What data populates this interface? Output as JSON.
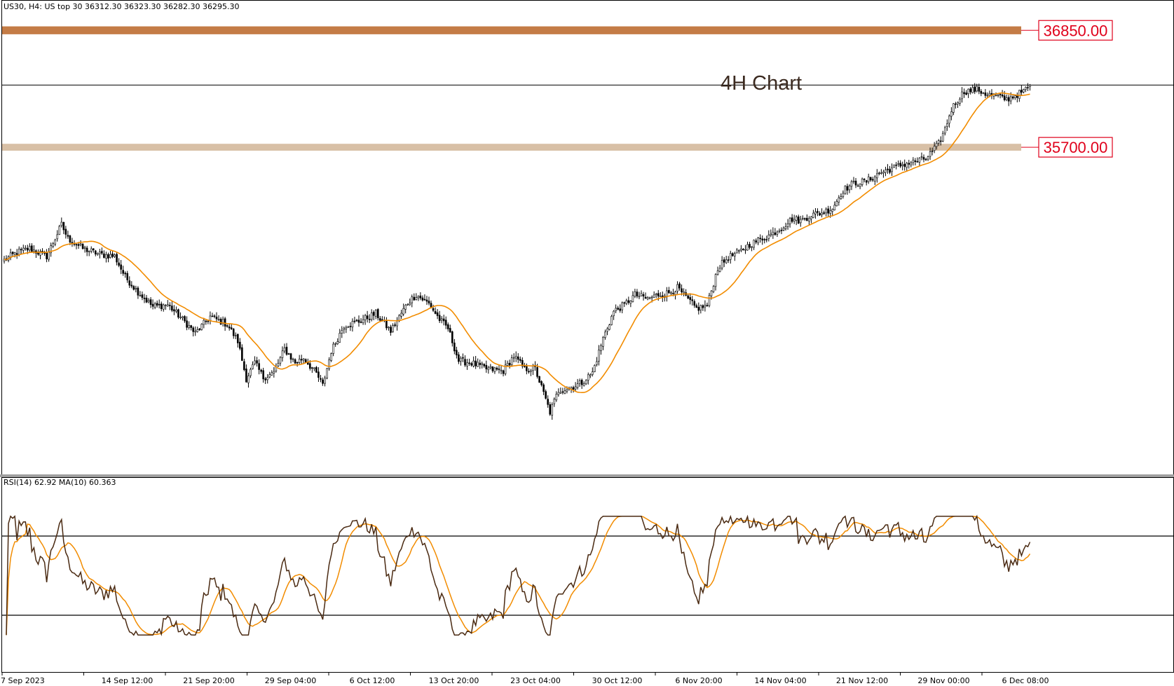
{
  "header": {
    "symbol_info": "US30, H4:  US top 30  36312.30 36323.30 36282.30 36295.30"
  },
  "annotation": {
    "text": "4H Chart",
    "color": "#3b2a20"
  },
  "zones": [
    {
      "label": "36850.00",
      "low": 36810,
      "high": 36890,
      "color": "#c47c46",
      "label_color": "#e0001b"
    },
    {
      "label": "35700.00",
      "low": 35630,
      "high": 35700,
      "color": "#d8c0a6",
      "label_color": "#e0001b"
    }
  ],
  "reference_line": {
    "price": 36295.3
  },
  "rsi": {
    "label": "RSI(14) 62.92 MA(10) 60.363",
    "levels": [
      70,
      30
    ],
    "colors": {
      "rsi": "#4a2a12",
      "ma": "#f28c00"
    }
  },
  "chart_data": {
    "type": "candlestick",
    "title": "",
    "timeframe": "H4",
    "x_ticks": [
      "7 Sep 2023",
      "14 Sep 12:00",
      "21 Sep 20:00",
      "29 Sep 04:00",
      "6 Oct 12:00",
      "13 Oct 20:00",
      "23 Oct 04:00",
      "30 Oct 12:00",
      "6 Nov 20:00",
      "14 Nov 04:00",
      "21 Nov 12:00",
      "29 Nov 00:00",
      "6 Dec 08:00"
    ],
    "ylim": [
      32350,
      37150
    ],
    "ma_color": "#f28c00",
    "candle_color": "#000000",
    "price_path": [
      [
        0,
        34520
      ],
      [
        6,
        34600
      ],
      [
        12,
        34640
      ],
      [
        20,
        34560
      ],
      [
        27,
        34880
      ],
      [
        30,
        34740
      ],
      [
        37,
        34640
      ],
      [
        45,
        34580
      ],
      [
        52,
        34560
      ],
      [
        57,
        34350
      ],
      [
        63,
        34200
      ],
      [
        70,
        34050
      ],
      [
        77,
        34070
      ],
      [
        84,
        33920
      ],
      [
        90,
        33780
      ],
      [
        97,
        33950
      ],
      [
        105,
        33870
      ],
      [
        110,
        33700
      ],
      [
        114,
        33320
      ],
      [
        118,
        33480
      ],
      [
        122,
        33330
      ],
      [
        127,
        33380
      ],
      [
        132,
        33620
      ],
      [
        137,
        33480
      ],
      [
        141,
        33530
      ],
      [
        147,
        33370
      ],
      [
        150,
        33250
      ],
      [
        154,
        33600
      ],
      [
        160,
        33860
      ],
      [
        167,
        33900
      ],
      [
        175,
        33980
      ],
      [
        182,
        33800
      ],
      [
        190,
        34090
      ],
      [
        194,
        34170
      ],
      [
        200,
        34080
      ],
      [
        205,
        33920
      ],
      [
        209,
        33830
      ],
      [
        214,
        33500
      ],
      [
        220,
        33480
      ],
      [
        227,
        33420
      ],
      [
        235,
        33400
      ],
      [
        240,
        33550
      ],
      [
        245,
        33420
      ],
      [
        250,
        33420
      ],
      [
        254,
        33170
      ],
      [
        257,
        32980
      ],
      [
        261,
        33200
      ],
      [
        267,
        33230
      ],
      [
        272,
        33280
      ],
      [
        277,
        33380
      ],
      [
        282,
        33730
      ],
      [
        287,
        34000
      ],
      [
        292,
        34070
      ],
      [
        297,
        34170
      ],
      [
        303,
        34130
      ],
      [
        308,
        34170
      ],
      [
        313,
        34190
      ],
      [
        317,
        34240
      ],
      [
        322,
        34120
      ],
      [
        326,
        34030
      ],
      [
        331,
        34060
      ],
      [
        336,
        34440
      ],
      [
        341,
        34550
      ],
      [
        346,
        34600
      ],
      [
        351,
        34680
      ],
      [
        356,
        34730
      ],
      [
        361,
        34780
      ],
      [
        366,
        34850
      ],
      [
        371,
        34940
      ],
      [
        375,
        34920
      ],
      [
        380,
        34980
      ],
      [
        385,
        35000
      ],
      [
        390,
        35050
      ],
      [
        395,
        35230
      ],
      [
        400,
        35300
      ],
      [
        406,
        35320
      ],
      [
        412,
        35400
      ],
      [
        418,
        35450
      ],
      [
        423,
        35490
      ],
      [
        429,
        35520
      ],
      [
        434,
        35550
      ],
      [
        437,
        35620
      ],
      [
        440,
        35700
      ],
      [
        443,
        35850
      ],
      [
        446,
        36050
      ],
      [
        449,
        36150
      ],
      [
        452,
        36230
      ],
      [
        458,
        36250
      ],
      [
        463,
        36200
      ],
      [
        468,
        36180
      ],
      [
        472,
        36150
      ],
      [
        477,
        36200
      ],
      [
        480,
        36230
      ],
      [
        483,
        36295
      ]
    ]
  }
}
